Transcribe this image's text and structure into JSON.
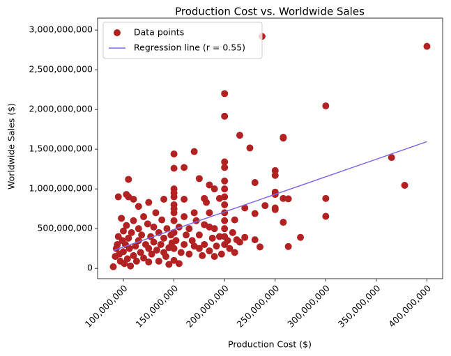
{
  "chart_data": {
    "type": "scatter",
    "title": "Production Cost vs. Worldwide Sales",
    "x_label": "Production Cost ($)",
    "y_label": "Worldwide Sales ($)",
    "legend": "upper left",
    "xlim": [
      74500000.0,
      415500000.0
    ],
    "ylim": [
      -130000000.0,
      3150000000.0
    ],
    "xticks": [
      {
        "value": 100000000.0,
        "label": "100,000,000"
      },
      {
        "value": 150000000.0,
        "label": "150,000,000"
      },
      {
        "value": 200000000.0,
        "label": "200,000,000"
      },
      {
        "value": 250000000.0,
        "label": "250,000,000"
      },
      {
        "value": 300000000.0,
        "label": "300,000,000"
      },
      {
        "value": 350000000.0,
        "label": "350,000,000"
      },
      {
        "value": 400000000.0,
        "label": "400,000,000"
      }
    ],
    "yticks": [
      0,
      {
        "value": 500000000.0,
        "label": "500,000,000"
      },
      {
        "value": 1000000000.0,
        "label": "1,000,000,000"
      },
      {
        "value": 1500000000.0,
        "label": "1,500,000,000"
      },
      {
        "value": 2000000000.0,
        "label": "2,000,000,000"
      },
      {
        "value": 2500000000.0,
        "label": "2,500,000,000"
      },
      {
        "value": 3000000000.0,
        "label": "3,000,000,000"
      }
    ],
    "series": [
      {
        "name": "Data points",
        "type": "scatter",
        "color": "#b22222",
        "x": [
          237000000.0,
          400000000.0,
          300000000.0,
          200000000.0,
          200000000.0,
          215000000.0,
          225000000.0,
          258000000.0,
          258000000.0,
          365000000.0,
          378000000.0,
          300000000.0,
          300000000.0,
          250000000.0,
          250000000.0,
          250000000.0,
          250000000.0,
          250000000.0,
          250000000.0,
          258000000.0,
          263000000.0,
          258000000.0,
          263000000.0,
          275000000.0,
          200000000.0,
          200000000.0,
          200000000.0,
          200000000.0,
          200000000.0,
          200000000.0,
          200000000.0,
          200000000.0,
          200000000.0,
          200000000.0,
          200000000.0,
          150000000.0,
          150000000.0,
          150000000.0,
          150000000.0,
          150000000.0,
          150000000.0,
          150000000.0,
          150000000.0,
          170000000.0,
          160000000.0,
          175000000.0,
          185000000.0,
          190000000.0,
          230000000.0,
          220000000.0,
          230000000.0,
          240000000.0,
          210000000.0,
          220000000.0,
          230000000.0,
          235000000.0,
          215000000.0,
          105000000.0,
          103000000.0,
          105000000.0,
          110000000.0,
          95000000.0,
          90000000.0,
          92000000.0,
          93000000.0,
          94000000.0,
          95000000.0,
          96000000.0,
          97000000.0,
          98000000.0,
          99000000.0,
          100000000.0,
          100000000.0,
          101000000.0,
          102000000.0,
          103000000.0,
          104000000.0,
          105000000.0,
          106000000.0,
          107000000.0,
          108000000.0,
          110000000.0,
          110000000.0,
          112000000.0,
          113000000.0,
          115000000.0,
          115000000.0,
          117000000.0,
          118000000.0,
          120000000.0,
          120000000.0,
          122000000.0,
          124000000.0,
          125000000.0,
          125000000.0,
          127000000.0,
          128000000.0,
          130000000.0,
          130000000.0,
          132000000.0,
          133000000.0,
          135000000.0,
          135000000.0,
          137000000.0,
          138000000.0,
          140000000.0,
          140000000.0,
          142000000.0,
          143000000.0,
          145000000.0,
          145000000.0,
          147000000.0,
          148000000.0,
          150000000.0,
          150000000.0,
          150000000.0,
          150000000.0,
          152000000.0,
          155000000.0,
          155000000.0,
          157000000.0,
          160000000.0,
          160000000.0,
          162000000.0,
          165000000.0,
          165000000.0,
          168000000.0,
          170000000.0,
          170000000.0,
          172000000.0,
          175000000.0,
          175000000.0,
          178000000.0,
          180000000.0,
          180000000.0,
          182000000.0,
          185000000.0,
          185000000.0,
          188000000.0,
          190000000.0,
          190000000.0,
          192000000.0,
          195000000.0,
          195000000.0,
          197000000.0,
          203000000.0,
          205000000.0,
          208000000.0,
          210000000.0,
          212000000.0,
          185000000.0,
          125000000.0,
          140000000.0,
          115000000.0,
          160000000.0,
          180000000.0
        ],
        "values": [
          2920000000.0,
          2795000000.0,
          2045000000.0,
          2200000000.0,
          1915000000.0,
          1675000000.0,
          1515000000.0,
          1650000000.0,
          1640000000.0,
          1395000000.0,
          1045000000.0,
          880000000.0,
          655000000.0,
          1230000000.0,
          1170000000.0,
          960000000.0,
          930000000.0,
          760000000.0,
          740000000.0,
          880000000.0,
          875000000.0,
          580000000.0,
          275000000.0,
          390000000.0,
          1340000000.0,
          1270000000.0,
          1100000000.0,
          1000000000.0,
          900000000.0,
          800000000.0,
          700000000.0,
          600000000.0,
          500000000.0,
          400000000.0,
          300000000.0,
          1440000000.0,
          1260000000.0,
          1000000000.0,
          950000000.0,
          900000000.0,
          800000000.0,
          750000000.0,
          700000000.0,
          1470000000.0,
          1270000000.0,
          1130000000.0,
          1050000000.0,
          1000000000.0,
          1080000000.0,
          760000000.0,
          690000000.0,
          790000000.0,
          610000000.0,
          390000000.0,
          360000000.0,
          270000000.0,
          330000000.0,
          1120000000.0,
          930000000.0,
          900000000.0,
          870000000.0,
          900000000.0,
          20000000.0,
          150000000.0,
          250000000.0,
          300000000.0,
          400000000.0,
          180000000.0,
          90000000.0,
          630000000.0,
          350000000.0,
          210000000.0,
          470000000.0,
          60000000.0,
          300000000.0,
          540000000.0,
          120000000.0,
          380000000.0,
          250000000.0,
          30000000.0,
          450000000.0,
          160000000.0,
          600000000.0,
          280000000.0,
          90000000.0,
          350000000.0,
          500000000.0,
          200000000.0,
          420000000.0,
          130000000.0,
          650000000.0,
          300000000.0,
          560000000.0,
          250000000.0,
          80000000.0,
          400000000.0,
          180000000.0,
          330000000.0,
          520000000.0,
          700000000.0,
          230000000.0,
          90000000.0,
          450000000.0,
          300000000.0,
          610000000.0,
          200000000.0,
          380000000.0,
          150000000.0,
          500000000.0,
          260000000.0,
          50000000.0,
          420000000.0,
          320000000.0,
          100000000.0,
          250000000.0,
          450000000.0,
          600000000.0,
          350000000.0,
          60000000.0,
          520000000.0,
          200000000.0,
          300000000.0,
          650000000.0,
          420000000.0,
          180000000.0,
          500000000.0,
          350000000.0,
          280000000.0,
          700000000.0,
          600000000.0,
          250000000.0,
          420000000.0,
          160000000.0,
          300000000.0,
          550000000.0,
          830000000.0,
          220000000.0,
          700000000.0,
          380000000.0,
          150000000.0,
          500000000.0,
          280000000.0,
          400000000.0,
          880000000.0,
          180000000.0,
          350000000.0,
          250000000.0,
          450000000.0,
          200000000.0,
          360000000.0,
          520000000.0,
          830000000.0,
          870000000.0,
          780000000.0,
          870000000.0,
          880000000.0
        ]
      },
      {
        "name": "Regression line (r = 0.55)",
        "type": "line",
        "color": "#7b68ee",
        "x": [
          90000000.0,
          400000000.0
        ],
        "values": [
          224000000.0,
          1595000000.0
        ]
      }
    ]
  }
}
